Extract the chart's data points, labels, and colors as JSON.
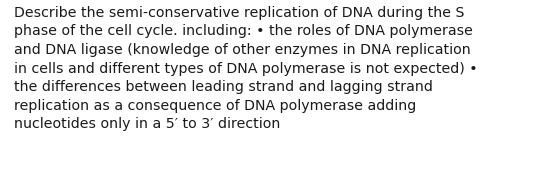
{
  "lines": [
    "Describe the semi-conservative replication of DNA during the S",
    "phase of the cell cycle. including: • the roles of DNA polymerase",
    "and DNA ligase (knowledge of other enzymes in DNA replication",
    "in cells and different types of DNA polymerase is not expected) •",
    "the differences between leading strand and lagging strand",
    "replication as a consequence of DNA polymerase adding",
    "nucleotides only in a 5′ to 3′ direction"
  ],
  "background_color": "#ffffff",
  "text_color": "#1a1a1a",
  "font_size": 10.2,
  "font_family": "DejaVu Sans",
  "fig_width": 5.58,
  "fig_height": 1.88,
  "dpi": 100
}
